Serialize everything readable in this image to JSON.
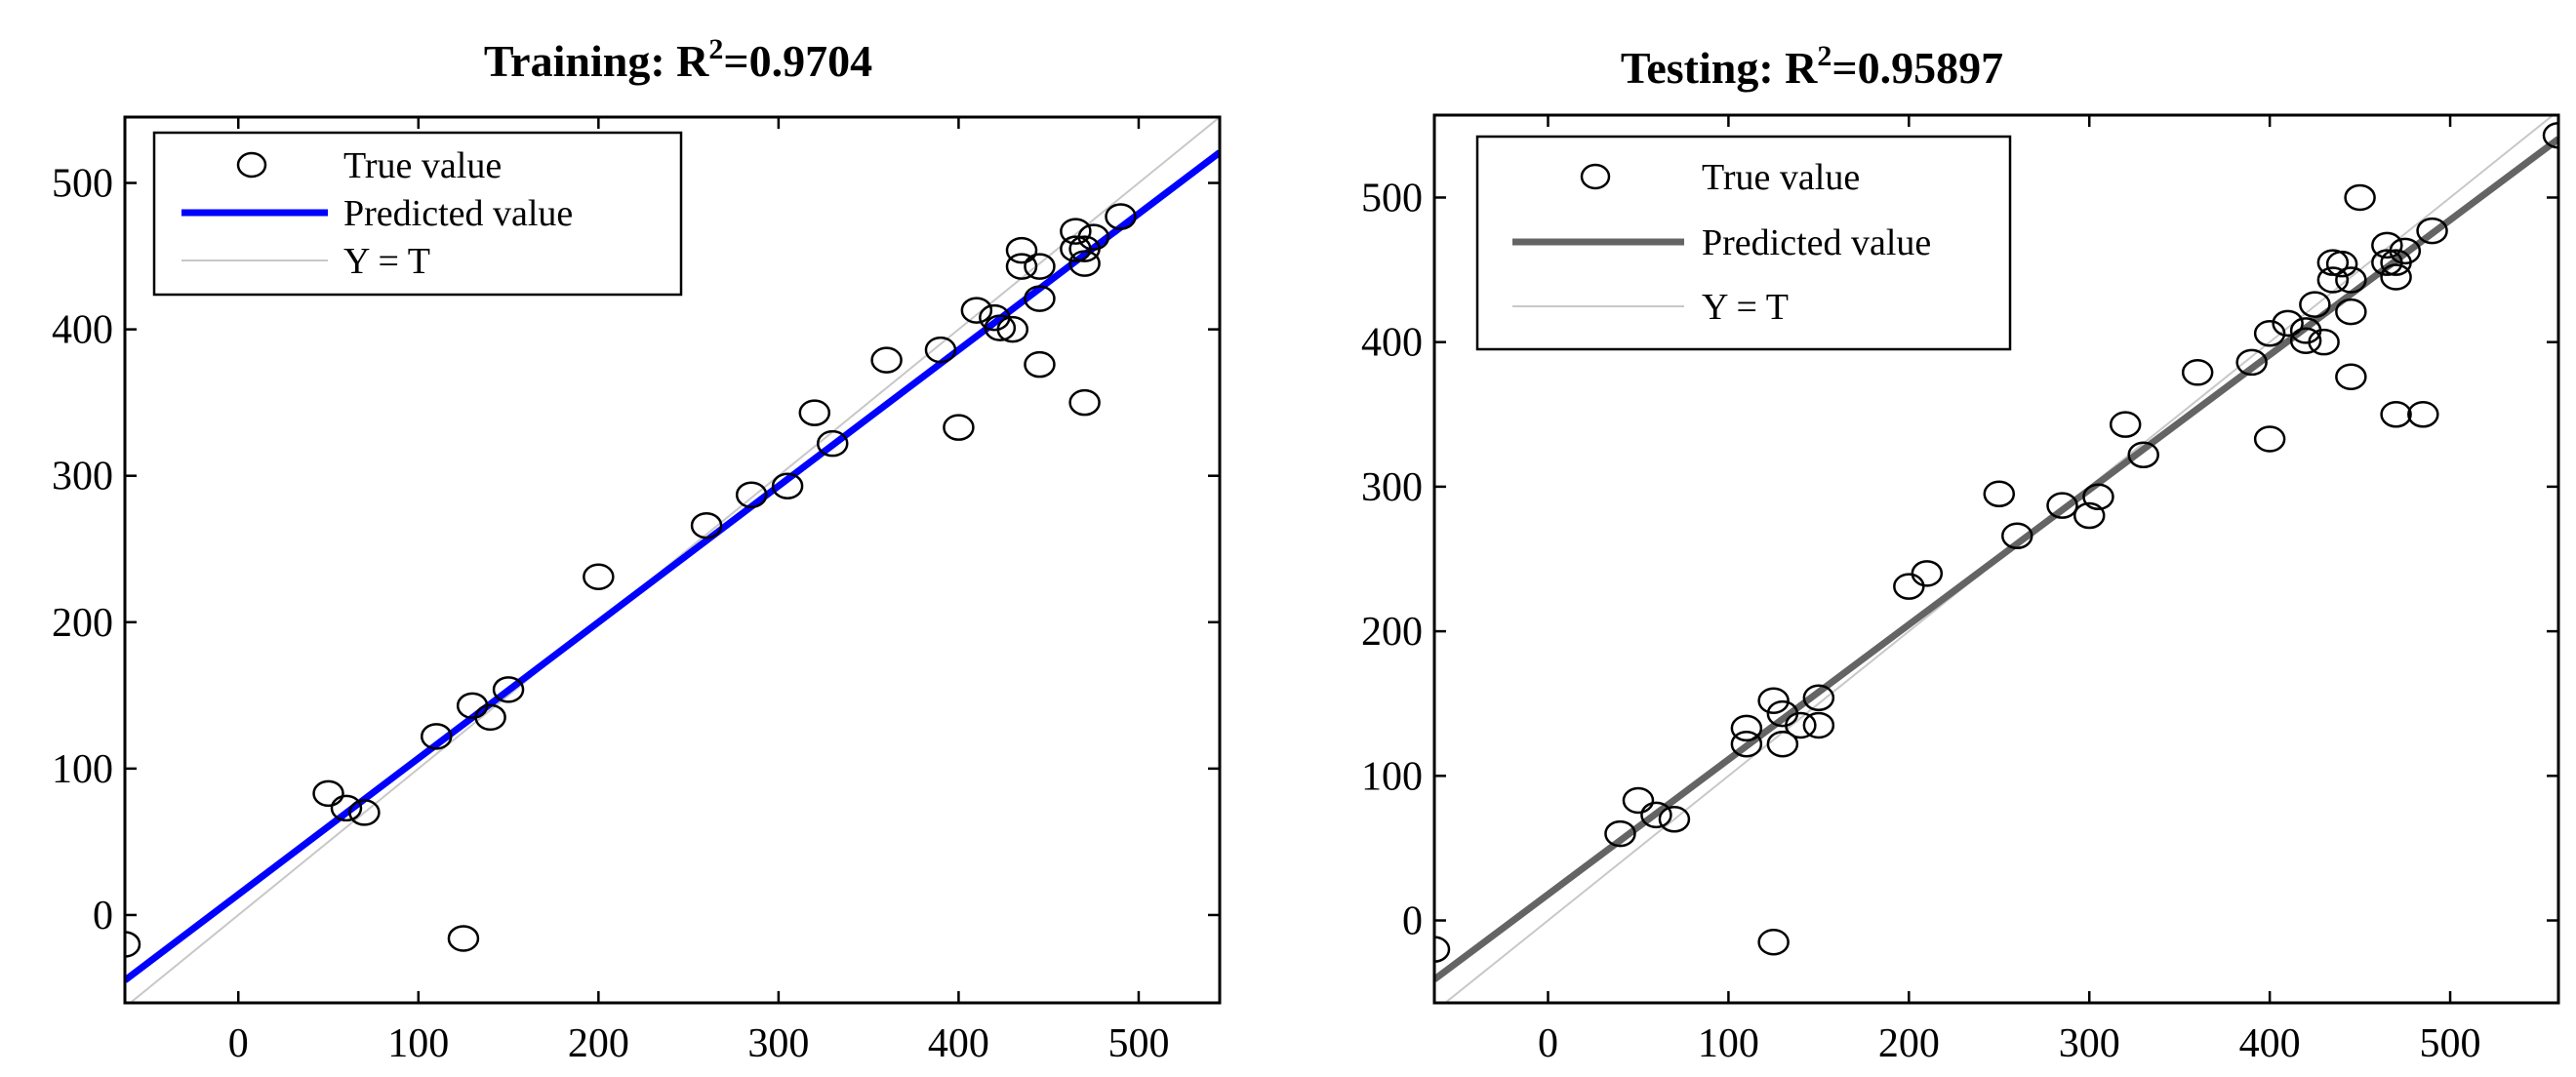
{
  "chart_data": [
    {
      "type": "scatter",
      "title": "Training: R",
      "title_superscript": "2",
      "title_suffix": "=0.9704",
      "xlabel": "",
      "ylabel": "",
      "xlim": [
        -63,
        545
      ],
      "ylim": [
        -60,
        545
      ],
      "xticks": [
        0,
        100,
        200,
        300,
        400,
        500
      ],
      "yticks": [
        0,
        100,
        200,
        300,
        400,
        500
      ],
      "xtick_labels": [
        "0",
        "100",
        "200",
        "300",
        "400",
        "500"
      ],
      "ytick_labels": [
        "0",
        "100",
        "200",
        "300",
        "400",
        "500"
      ],
      "grid": false,
      "legend_position": "top-left",
      "legend": [
        "True value",
        "Predicted value",
        "Y = T"
      ],
      "colors": {
        "markers": "#000000",
        "fit": "#0000ff",
        "identity": "#c8c8c8"
      },
      "fit_line": {
        "slope": 0.93,
        "intercept": 14
      },
      "identity_line": {
        "slope": 1,
        "intercept": 0
      },
      "points": [
        [
          -63,
          -20
        ],
        [
          50,
          83
        ],
        [
          60,
          73
        ],
        [
          70,
          70
        ],
        [
          110,
          122
        ],
        [
          125,
          -16
        ],
        [
          130,
          143
        ],
        [
          140,
          135
        ],
        [
          150,
          154
        ],
        [
          200,
          231
        ],
        [
          260,
          266
        ],
        [
          285,
          287
        ],
        [
          305,
          293
        ],
        [
          320,
          343
        ],
        [
          330,
          322
        ],
        [
          360,
          379
        ],
        [
          390,
          386
        ],
        [
          400,
          333
        ],
        [
          410,
          413
        ],
        [
          420,
          408
        ],
        [
          423,
          401
        ],
        [
          430,
          400
        ],
        [
          435,
          454
        ],
        [
          435,
          443
        ],
        [
          445,
          443
        ],
        [
          445,
          421
        ],
        [
          445,
          376
        ],
        [
          465,
          467
        ],
        [
          465,
          455
        ],
        [
          470,
          455
        ],
        [
          470,
          445
        ],
        [
          470,
          350
        ],
        [
          475,
          463
        ],
        [
          490,
          477
        ]
      ]
    },
    {
      "type": "scatter",
      "title": "Testing: R",
      "title_superscript": "2",
      "title_suffix": "=0.95897",
      "xlabel": "",
      "ylabel": "",
      "xlim": [
        -63,
        560
      ],
      "ylim": [
        -57,
        557
      ],
      "xticks": [
        0,
        100,
        200,
        300,
        400,
        500
      ],
      "yticks": [
        0,
        100,
        200,
        300,
        400,
        500
      ],
      "xtick_labels": [
        "0",
        "100",
        "200",
        "300",
        "400",
        "500"
      ],
      "ytick_labels": [
        "0",
        "100",
        "200",
        "300",
        "400",
        "500"
      ],
      "grid": false,
      "legend_position": "top-left",
      "legend": [
        "True value",
        "Predicted value",
        "Y = T"
      ],
      "colors": {
        "markers": "#000000",
        "fit": "#646464",
        "identity": "#c8c8c8"
      },
      "fit_line": {
        "slope": 0.933,
        "intercept": 18
      },
      "identity_line": {
        "slope": 1,
        "intercept": 0
      },
      "points": [
        [
          -63,
          -20
        ],
        [
          40,
          60
        ],
        [
          50,
          83
        ],
        [
          60,
          73
        ],
        [
          70,
          70
        ],
        [
          110,
          133
        ],
        [
          110,
          122
        ],
        [
          125,
          152
        ],
        [
          125,
          -15
        ],
        [
          130,
          143
        ],
        [
          130,
          122
        ],
        [
          140,
          135
        ],
        [
          150,
          154
        ],
        [
          150,
          135
        ],
        [
          200,
          231
        ],
        [
          210,
          240
        ],
        [
          250,
          295
        ],
        [
          260,
          266
        ],
        [
          285,
          287
        ],
        [
          300,
          280
        ],
        [
          305,
          293
        ],
        [
          320,
          343
        ],
        [
          330,
          322
        ],
        [
          360,
          379
        ],
        [
          390,
          386
        ],
        [
          400,
          406
        ],
        [
          400,
          333
        ],
        [
          410,
          413
        ],
        [
          420,
          408
        ],
        [
          420,
          401
        ],
        [
          425,
          426
        ],
        [
          430,
          400
        ],
        [
          435,
          455
        ],
        [
          435,
          443
        ],
        [
          440,
          454
        ],
        [
          445,
          443
        ],
        [
          445,
          421
        ],
        [
          445,
          376
        ],
        [
          450,
          500
        ],
        [
          465,
          467
        ],
        [
          465,
          455
        ],
        [
          470,
          455
        ],
        [
          470,
          445
        ],
        [
          470,
          350
        ],
        [
          475,
          463
        ],
        [
          485,
          350
        ],
        [
          490,
          477
        ],
        [
          560,
          543
        ]
      ]
    }
  ]
}
